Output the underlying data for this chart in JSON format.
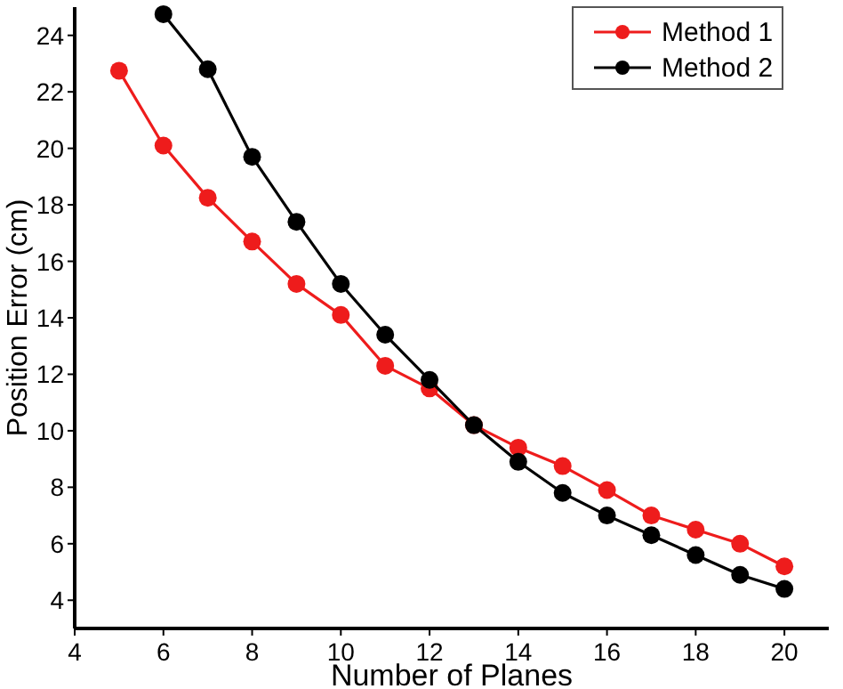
{
  "chart_data": {
    "type": "line",
    "xlabel": "Number of Planes",
    "ylabel": "Position Error (cm)",
    "x": [
      5,
      6,
      7,
      8,
      9,
      10,
      11,
      12,
      13,
      14,
      15,
      16,
      17,
      18,
      19,
      20
    ],
    "series": [
      {
        "name": "Method 1",
        "color": "#ee1c1c",
        "values": [
          22.75,
          20.1,
          18.25,
          16.7,
          15.2,
          14.1,
          12.3,
          11.5,
          10.2,
          9.4,
          8.75,
          7.9,
          7.0,
          6.5,
          6.0,
          5.2
        ]
      },
      {
        "name": "Method 2",
        "color": "#000000",
        "x": [
          6,
          7,
          8,
          9,
          10,
          11,
          12,
          13,
          14,
          15,
          16,
          17,
          18,
          19,
          20
        ],
        "values": [
          24.75,
          22.8,
          19.7,
          17.4,
          15.2,
          13.4,
          11.8,
          10.2,
          8.9,
          7.8,
          7.0,
          6.3,
          5.6,
          4.9,
          4.4
        ]
      }
    ],
    "xlim": [
      4,
      21
    ],
    "xticks": [
      4,
      6,
      8,
      10,
      12,
      14,
      16,
      18,
      20
    ],
    "ylim": [
      3,
      25
    ],
    "yticks": [
      4,
      6,
      8,
      10,
      12,
      14,
      16,
      18,
      20,
      22,
      24
    ],
    "grid": false,
    "legend": "top right",
    "marker": "circle",
    "line_style": "solid"
  }
}
